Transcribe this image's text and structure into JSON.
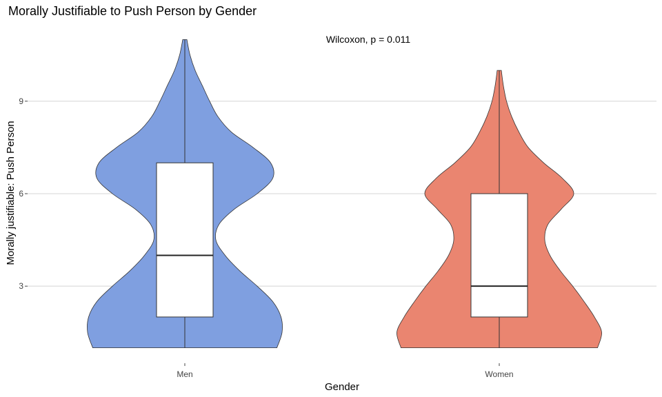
{
  "chart_data": {
    "type": "violin",
    "title": "Morally Justifiable to Push Person by Gender",
    "annotation": "Wilcoxon, p = 0.011",
    "xlabel": "Gender",
    "ylabel": "Morally justifiable: Push Person",
    "categories": [
      "Men",
      "Women"
    ],
    "ylim": [
      0.5,
      11.5
    ],
    "yticks": [
      3,
      6,
      9
    ],
    "grid": "horizontal",
    "legend": "none",
    "groups": [
      {
        "category": "Men",
        "color": "#7f9fe0",
        "box": {
          "min": 1,
          "q1": 2,
          "median": 4,
          "q3": 7,
          "max": 11
        },
        "density": [
          [
            1,
            0.89
          ],
          [
            1.5,
            0.94
          ],
          [
            2,
            0.93
          ],
          [
            2.5,
            0.85
          ],
          [
            3,
            0.7
          ],
          [
            3.5,
            0.53
          ],
          [
            4,
            0.39
          ],
          [
            4.5,
            0.3
          ],
          [
            5,
            0.33
          ],
          [
            5.5,
            0.48
          ],
          [
            6,
            0.7
          ],
          [
            6.5,
            0.85
          ],
          [
            7,
            0.83
          ],
          [
            7.5,
            0.66
          ],
          [
            8,
            0.45
          ],
          [
            8.5,
            0.32
          ],
          [
            9,
            0.24
          ],
          [
            9.5,
            0.17
          ],
          [
            10,
            0.1
          ],
          [
            10.5,
            0.05
          ],
          [
            11,
            0.02
          ]
        ]
      },
      {
        "category": "Women",
        "color": "#ea8570",
        "box": {
          "min": 1,
          "q1": 2,
          "median": 3,
          "q3": 6,
          "max": 10
        },
        "density": [
          [
            1,
            0.95
          ],
          [
            1.5,
            0.99
          ],
          [
            2,
            0.92
          ],
          [
            2.5,
            0.82
          ],
          [
            3,
            0.71
          ],
          [
            3.5,
            0.59
          ],
          [
            4,
            0.49
          ],
          [
            4.5,
            0.44
          ],
          [
            5,
            0.47
          ],
          [
            5.5,
            0.6
          ],
          [
            6,
            0.72
          ],
          [
            6.5,
            0.61
          ],
          [
            7,
            0.43
          ],
          [
            7.5,
            0.28
          ],
          [
            8,
            0.19
          ],
          [
            8.5,
            0.12
          ],
          [
            9,
            0.07
          ],
          [
            9.5,
            0.04
          ],
          [
            10,
            0.02
          ]
        ]
      }
    ]
  }
}
